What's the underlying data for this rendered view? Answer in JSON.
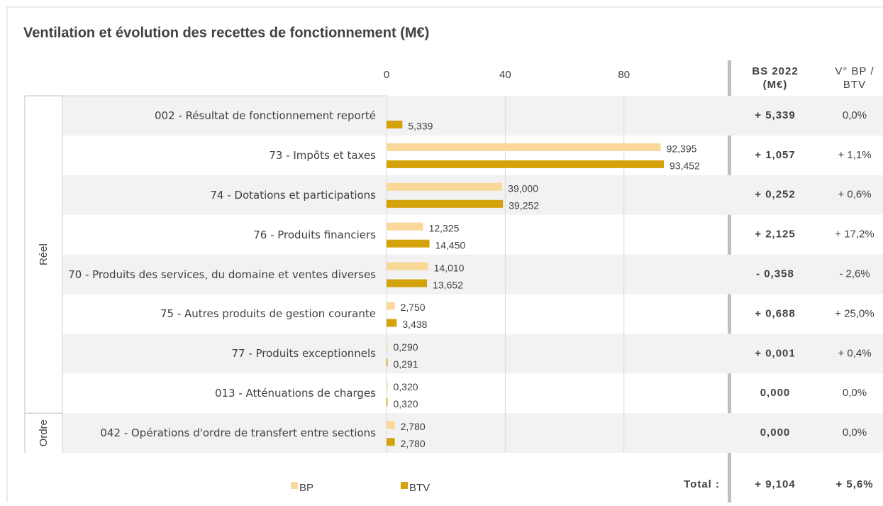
{
  "chart_data": {
    "type": "barh",
    "title": "Ventilation et évolution des recettes de fonctionnement (M€)",
    "categories": [
      "002 - Résultat de fonctionnement reporté",
      "73 - Impôts et taxes",
      "74 - Dotations et participations",
      "76 - Produits financiers",
      "70 - Produits des services, du domaine et ventes diverses",
      "75 - Autres produits de gestion courante",
      "77 - Produits exceptionnels",
      "013 - Atténuations de charges",
      "042 - Opérations d'ordre de transfert entre sections"
    ],
    "groups": [
      {
        "name": "Réel",
        "rows": 8
      },
      {
        "name": "Ordre",
        "rows": 1
      }
    ],
    "series": [
      {
        "name": "BP",
        "color": "#f9d89a",
        "values": [
          null,
          92.395,
          39.0,
          12.325,
          14.01,
          2.75,
          0.29,
          0.32,
          2.78
        ],
        "value_labels": [
          null,
          "92,395",
          "39,000",
          "12,325",
          "14,010",
          "2,750",
          "0,290",
          "0,320",
          "2,780"
        ]
      },
      {
        "name": "BTV",
        "color": "#d4a20a",
        "values": [
          5.339,
          93.452,
          39.252,
          14.45,
          13.652,
          3.438,
          0.291,
          0.32,
          2.78
        ],
        "value_labels": [
          "5,339",
          "93,452",
          "39,252",
          "14,450",
          "13,652",
          "3,438",
          "0,291",
          "0,320",
          "2,780"
        ]
      }
    ],
    "xlim": [
      0,
      114
    ],
    "xticks": [
      0,
      40,
      80
    ],
    "grid": true,
    "columns": [
      {
        "header": [
          "BS 2022",
          "(M€)"
        ],
        "cells": [
          "+ 5,339",
          "+ 1,057",
          "+ 0,252",
          "+ 2,125",
          "- 0,358",
          "+ 0,688",
          "+ 0,001",
          "0,000",
          "0,000"
        ],
        "total": "+ 9,104"
      },
      {
        "header": [
          "V° BP /",
          "BTV"
        ],
        "cells": [
          "0,0%",
          "+ 1,1%",
          "+ 0,6%",
          "+ 17,2%",
          "- 2,6%",
          "+ 25,0%",
          "+ 0,4%",
          "0,0%",
          "0,0%"
        ],
        "total": "+ 5,6%"
      }
    ],
    "total_label": "Total :"
  }
}
